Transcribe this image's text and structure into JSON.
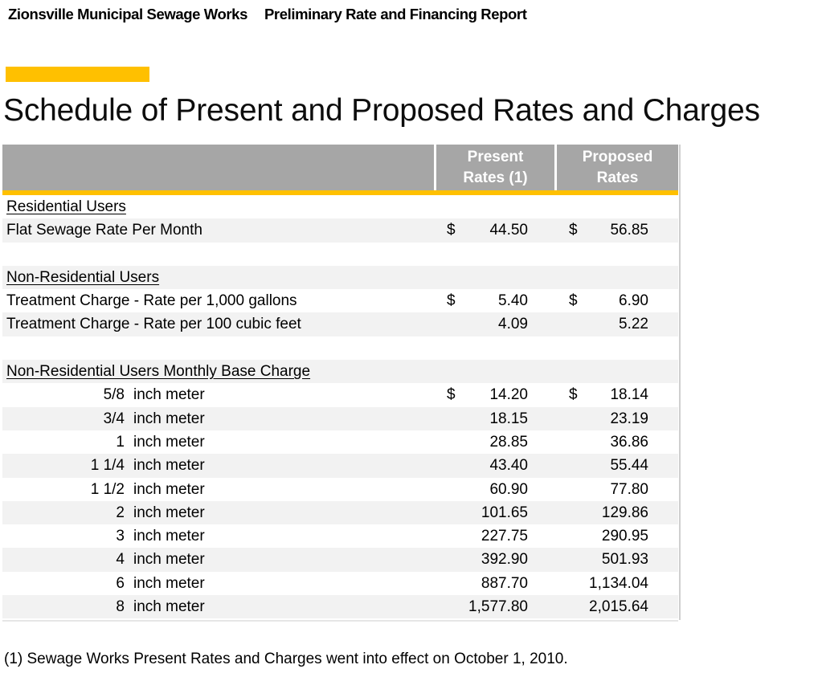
{
  "page_header": {
    "left": "Zionsville Municipal Sewage Works",
    "right": "Preliminary Rate and Financing Report"
  },
  "title": "Schedule of Present and Proposed Rates and Charges",
  "colors": {
    "accent": "#FFC000",
    "header_gray": "#A6A6A6",
    "shaded_row": "#F2F2F2"
  },
  "table": {
    "header": {
      "present_line1": "Present",
      "present_line2": "Rates (1)",
      "proposed_line1": "Proposed",
      "proposed_line2": "Rates"
    },
    "rows": [
      {
        "type": "section",
        "label": "Residential Users",
        "shaded": false
      },
      {
        "type": "data",
        "label": "Flat Sewage Rate Per Month",
        "present_dollar": "$",
        "present": "44.50",
        "proposed_dollar": "$",
        "proposed": "56.85",
        "shaded": true
      },
      {
        "type": "blank",
        "shaded": false
      },
      {
        "type": "section",
        "label": "Non-Residential Users",
        "shaded": true
      },
      {
        "type": "data",
        "label": "Treatment Charge - Rate per 1,000 gallons",
        "present_dollar": "$",
        "present": "5.40",
        "proposed_dollar": "$",
        "proposed": "6.90",
        "shaded": false
      },
      {
        "type": "data",
        "label": "Treatment Charge - Rate per 100 cubic feet",
        "present_dollar": "",
        "present": "4.09",
        "proposed_dollar": "",
        "proposed": "5.22",
        "shaded": true
      },
      {
        "type": "blank",
        "shaded": false
      },
      {
        "type": "section",
        "label": "Non-Residential Users Monthly Base Charge",
        "shaded": true
      },
      {
        "type": "meter",
        "size": "5/8",
        "unit": "inch meter",
        "present_dollar": "$",
        "present": "14.20",
        "proposed_dollar": "$",
        "proposed": "18.14",
        "shaded": false
      },
      {
        "type": "meter",
        "size": "3/4",
        "unit": "inch meter",
        "present_dollar": "",
        "present": "18.15",
        "proposed_dollar": "",
        "proposed": "23.19",
        "shaded": true
      },
      {
        "type": "meter",
        "size": "1",
        "unit": "inch meter",
        "present_dollar": "",
        "present": "28.85",
        "proposed_dollar": "",
        "proposed": "36.86",
        "shaded": false
      },
      {
        "type": "meter",
        "size": "1 1/4",
        "unit": "inch meter",
        "present_dollar": "",
        "present": "43.40",
        "proposed_dollar": "",
        "proposed": "55.44",
        "shaded": true
      },
      {
        "type": "meter",
        "size": "1 1/2",
        "unit": "inch meter",
        "present_dollar": "",
        "present": "60.90",
        "proposed_dollar": "",
        "proposed": "77.80",
        "shaded": false
      },
      {
        "type": "meter",
        "size": "2",
        "unit": "inch meter",
        "present_dollar": "",
        "present": "101.65",
        "proposed_dollar": "",
        "proposed": "129.86",
        "shaded": true
      },
      {
        "type": "meter",
        "size": "3",
        "unit": "inch meter",
        "present_dollar": "",
        "present": "227.75",
        "proposed_dollar": "",
        "proposed": "290.95",
        "shaded": false
      },
      {
        "type": "meter",
        "size": "4",
        "unit": "inch meter",
        "present_dollar": "",
        "present": "392.90",
        "proposed_dollar": "",
        "proposed": "501.93",
        "shaded": true
      },
      {
        "type": "meter",
        "size": "6",
        "unit": "inch meter",
        "present_dollar": "",
        "present": "887.70",
        "proposed_dollar": "",
        "proposed": "1,134.04",
        "shaded": false
      },
      {
        "type": "meter",
        "size": "8",
        "unit": "inch meter",
        "present_dollar": "",
        "present": "1,577.80",
        "proposed_dollar": "",
        "proposed": "2,015.64",
        "shaded": true
      }
    ]
  },
  "footnote": "(1) Sewage Works Present Rates and Charges went into effect on October 1, 2010."
}
